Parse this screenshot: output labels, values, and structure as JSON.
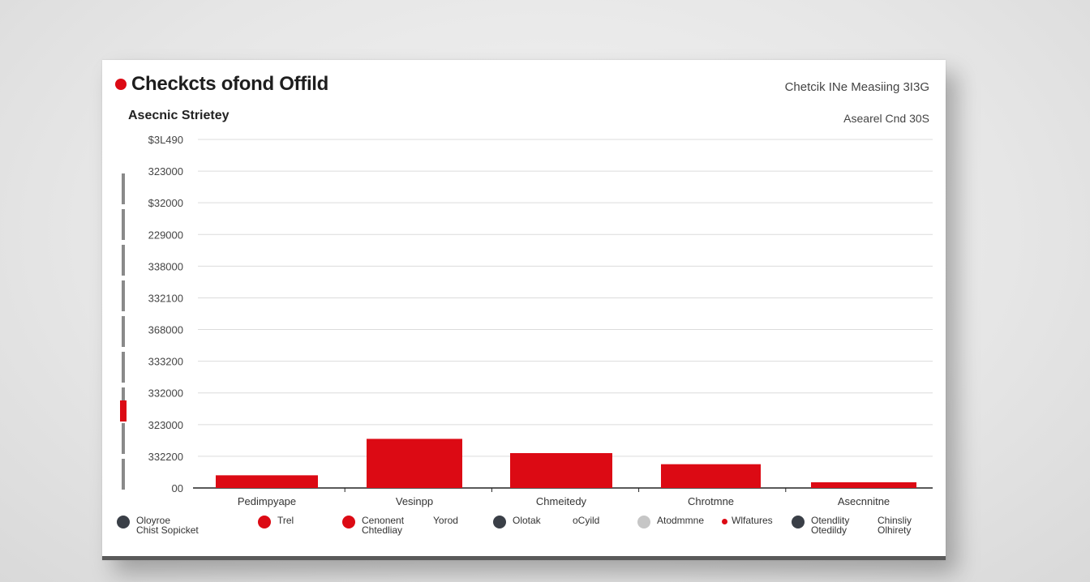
{
  "header": {
    "title": "Checkcts ofond Offild",
    "subtitle": "Asecnic Strietey",
    "top_right_1": "Chetcik INe Measiing 3I3G",
    "top_right_2": "Asearel Cnd 30S"
  },
  "colors": {
    "accent": "#dc0a14",
    "dark": "#3a3f47",
    "light": "#c6c6c6",
    "gridline": "#dcdcdc"
  },
  "chart_data": {
    "type": "bar",
    "title": "Checkcts ofond Offild",
    "subtitle": "Asecnic Strietey",
    "ylabel": "",
    "y_ticks": [
      "00",
      "332200",
      "323000",
      "332000",
      "333200",
      "368000",
      "332100",
      "338000",
      "229000",
      "$32000",
      "323000",
      "$3L490"
    ],
    "ylim": [
      0,
      11
    ],
    "categories": [
      "Pedimpyape",
      "Vesinpp",
      "Chmeitedy",
      "Chrotmne",
      "Asecnnitne"
    ],
    "values": [
      0.4,
      1.55,
      1.1,
      0.75,
      0.18
    ],
    "grid": true,
    "legend_position": "bottom",
    "legend": [
      {
        "label": [
          "Oloyroe",
          "Chist Sopicket"
        ],
        "color": "dark"
      },
      {
        "label": [
          "Trel"
        ],
        "color": "accent",
        "extra": "Yorod"
      },
      {
        "label": [
          "Cenonent",
          "Chtedliay"
        ],
        "color": "accent"
      },
      {
        "label": [
          "Olotak"
        ],
        "color": "dark",
        "extra": "oCyild"
      },
      {
        "label": [
          "Atodmmne"
        ],
        "color": "light"
      },
      {
        "label": [
          "Wlfatures"
        ],
        "color": "accent",
        "small": true
      },
      {
        "label": [
          "Otendlity",
          "Otedildy"
        ],
        "color": "dark",
        "extra": "Chinsliy|Olhirety"
      }
    ]
  }
}
